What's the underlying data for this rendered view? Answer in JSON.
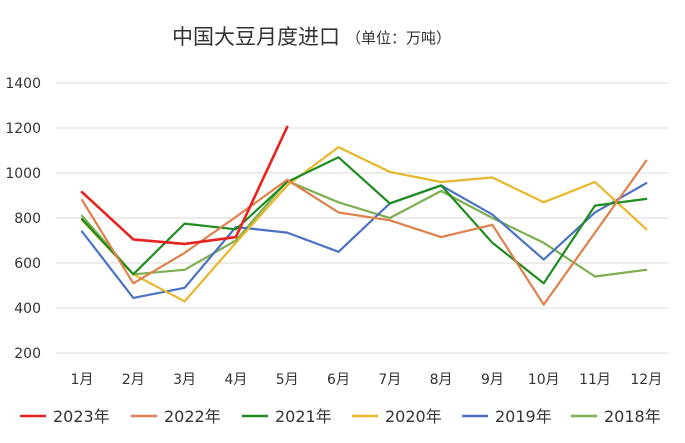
{
  "chart_data": {
    "type": "line",
    "title": "中国大豆月度进口",
    "unit_label": "（单位：万吨）",
    "xlabel": "",
    "ylabel": "",
    "categories": [
      "1月",
      "2月",
      "3月",
      "4月",
      "5月",
      "6月",
      "7月",
      "8月",
      "9月",
      "10月",
      "11月",
      "12月"
    ],
    "ylim": [
      200,
      1400
    ],
    "yticks": [
      200,
      400,
      600,
      800,
      1000,
      1200,
      1400
    ],
    "grid": true,
    "legend_position": "bottom",
    "series": [
      {
        "name": "2023年",
        "color": "#e8231f",
        "values": [
          915,
          705,
          685,
          715,
          1205,
          null,
          null,
          null,
          null,
          null,
          null,
          null
        ]
      },
      {
        "name": "2022年",
        "color": "#e0804a",
        "values": [
          880,
          510,
          645,
          805,
          970,
          825,
          790,
          715,
          770,
          415,
          735,
          1055
        ]
      },
      {
        "name": "2021年",
        "color": "#1f8c1f",
        "values": [
          795,
          550,
          775,
          750,
          960,
          1070,
          865,
          945,
          690,
          510,
          855,
          885
        ]
      },
      {
        "name": "2020年",
        "color": "#e8b62a",
        "values": [
          790,
          550,
          430,
          690,
          945,
          1115,
          1005,
          960,
          980,
          870,
          960,
          750
        ]
      },
      {
        "name": "2019年",
        "color": "#4a72c4",
        "values": [
          740,
          445,
          490,
          760,
          735,
          650,
          865,
          945,
          815,
          615,
          825,
          955
        ]
      },
      {
        "name": "2018年",
        "color": "#7daf50",
        "values": [
          810,
          550,
          570,
          700,
          965,
          870,
          800,
          920,
          800,
          690,
          540,
          570
        ]
      }
    ]
  }
}
